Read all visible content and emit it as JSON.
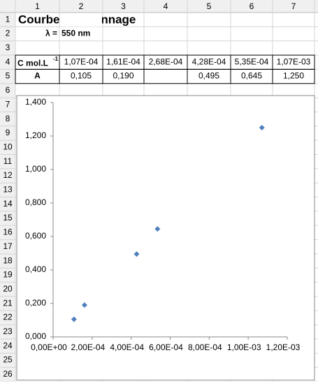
{
  "columns": [
    "1",
    "2",
    "3",
    "4",
    "5",
    "6",
    "7"
  ],
  "rows": [
    "1",
    "2",
    "3",
    "4",
    "5",
    "6",
    "7",
    "8",
    "9",
    "10",
    "11",
    "12",
    "13",
    "14",
    "15",
    "16",
    "17",
    "18",
    "19",
    "20",
    "21",
    "22",
    "23",
    "24",
    "25",
    "26"
  ],
  "sheet": {
    "title": "Courbe d'étalonnage",
    "lambda_symbol": "λ =",
    "lambda_value": "550 nm",
    "conc_label": "C mol.L",
    "conc_exponent": "-1",
    "conc_values": [
      "1,07E-04",
      "1,61E-04",
      "2,68E-04",
      "4,28E-04",
      "5,35E-04",
      "1,07E-03"
    ],
    "abs_label": "A",
    "abs_values": [
      "0,105",
      "0,190",
      null,
      "0,495",
      "0,645",
      "1,250"
    ]
  },
  "chart_data": {
    "type": "scatter",
    "color": "#4f81bd",
    "x": [
      0.000107,
      0.000161,
      0.000268,
      0.000428,
      0.000535,
      0.00107
    ],
    "values": [
      0.105,
      0.19,
      null,
      0.495,
      0.645,
      1.25
    ],
    "xlim": [
      0,
      0.0012
    ],
    "xticks": [
      {
        "value": 0,
        "label": "0,00E+00"
      },
      {
        "value": 0.0002,
        "label": "2,00E-04"
      },
      {
        "value": 0.0004,
        "label": "4,00E-04"
      },
      {
        "value": 0.0006,
        "label": "6,00E-04"
      },
      {
        "value": 0.0008,
        "label": "8,00E-04"
      },
      {
        "value": 0.001,
        "label": "1,00E-03"
      },
      {
        "value": 0.0012,
        "label": "1,20E-03"
      }
    ],
    "ylim": [
      0,
      1.4
    ],
    "yticks": [
      {
        "value": 0,
        "label": "0,000"
      },
      {
        "value": 0.2,
        "label": "0,200"
      },
      {
        "value": 0.4,
        "label": "0,400"
      },
      {
        "value": 0.6,
        "label": "0,600"
      },
      {
        "value": 0.8,
        "label": "0,800"
      },
      {
        "value": 1,
        "label": "1,000"
      },
      {
        "value": 1.2,
        "label": "1,200"
      },
      {
        "value": 1.4,
        "label": "1,400"
      }
    ]
  }
}
